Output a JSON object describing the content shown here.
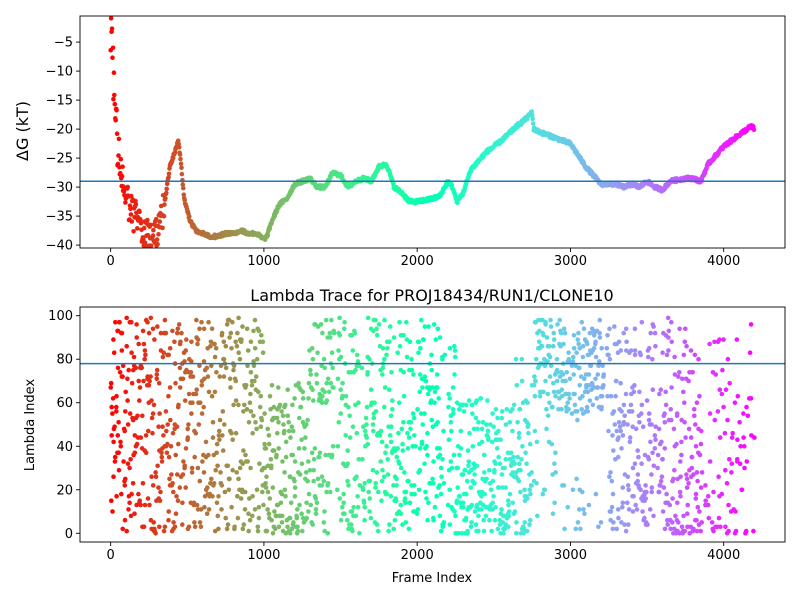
{
  "chart_data": [
    {
      "type": "scatter",
      "title": "",
      "xlabel": "",
      "ylabel": "ΔG (kT)",
      "xlim": [
        -200,
        4400
      ],
      "ylim": [
        -40.5,
        -0.5
      ],
      "xticks": [
        0,
        1000,
        2000,
        3000,
        4000
      ],
      "yticks": [
        -40,
        -35,
        -30,
        -25,
        -20,
        -15,
        -10,
        -5
      ],
      "xtick_labels": [
        "0",
        "1000",
        "2000",
        "3000",
        "4000"
      ],
      "ytick_labels": [
        "−40",
        "−35",
        "−30",
        "−25",
        "−20",
        "−15",
        "−10",
        "−5"
      ],
      "hline": -29.0,
      "hline_color": "#1f77b4",
      "colormap": "rainbow (reversed: red at frame 0 → violet at final frame)",
      "trace_knots": [
        [
          0,
          -3
        ],
        [
          20,
          -12
        ],
        [
          40,
          -20
        ],
        [
          60,
          -25
        ],
        [
          80,
          -29
        ],
        [
          100,
          -31
        ],
        [
          130,
          -34
        ],
        [
          160,
          -35
        ],
        [
          190,
          -37
        ],
        [
          230,
          -38.5
        ],
        [
          270,
          -38.5
        ],
        [
          310,
          -38.5
        ],
        [
          350,
          -33
        ],
        [
          390,
          -26
        ],
        [
          420,
          -24
        ],
        [
          440,
          -22
        ],
        [
          455,
          -25
        ],
        [
          480,
          -32
        ],
        [
          520,
          -36
        ],
        [
          560,
          -37.5
        ],
        [
          600,
          -38
        ],
        [
          650,
          -38.5
        ],
        [
          700,
          -38.5
        ],
        [
          750,
          -38
        ],
        [
          800,
          -38
        ],
        [
          850,
          -37.5
        ],
        [
          900,
          -38
        ],
        [
          950,
          -38
        ],
        [
          1000,
          -39
        ],
        [
          1020,
          -38.5
        ],
        [
          1050,
          -36
        ],
        [
          1100,
          -33
        ],
        [
          1150,
          -32
        ],
        [
          1200,
          -29.5
        ],
        [
          1250,
          -29
        ],
        [
          1300,
          -28.5
        ],
        [
          1350,
          -30
        ],
        [
          1400,
          -30
        ],
        [
          1450,
          -27.5
        ],
        [
          1500,
          -28
        ],
        [
          1550,
          -30
        ],
        [
          1600,
          -29
        ],
        [
          1650,
          -28.5
        ],
        [
          1700,
          -29
        ],
        [
          1750,
          -26.5
        ],
        [
          1800,
          -26
        ],
        [
          1850,
          -30
        ],
        [
          1900,
          -31
        ],
        [
          1950,
          -32.5
        ],
        [
          2000,
          -32.5
        ],
        [
          2100,
          -32
        ],
        [
          2150,
          -31.5
        ],
        [
          2200,
          -29
        ],
        [
          2230,
          -30
        ],
        [
          2260,
          -32.5
        ],
        [
          2300,
          -31
        ],
        [
          2350,
          -27
        ],
        [
          2450,
          -24
        ],
        [
          2550,
          -22
        ],
        [
          2650,
          -19.5
        ],
        [
          2720,
          -18
        ],
        [
          2750,
          -17
        ],
        [
          2760,
          -20
        ],
        [
          2800,
          -20.5
        ],
        [
          2900,
          -21.5
        ],
        [
          3000,
          -22.5
        ],
        [
          3050,
          -24.5
        ],
        [
          3100,
          -26.5
        ],
        [
          3150,
          -28
        ],
        [
          3200,
          -29.5
        ],
        [
          3250,
          -29.5
        ],
        [
          3300,
          -29.5
        ],
        [
          3350,
          -30
        ],
        [
          3400,
          -29.5
        ],
        [
          3450,
          -30
        ],
        [
          3500,
          -29
        ],
        [
          3550,
          -30
        ],
        [
          3600,
          -30.5
        ],
        [
          3650,
          -29
        ],
        [
          3750,
          -28.5
        ],
        [
          3800,
          -28.5
        ],
        [
          3850,
          -29
        ],
        [
          3900,
          -26
        ],
        [
          4000,
          -23
        ],
        [
          4100,
          -21
        ],
        [
          4180,
          -19.5
        ],
        [
          4200,
          -20
        ]
      ],
      "frame_count": 4200
    },
    {
      "type": "scatter",
      "title": "Lambda Trace for PROJ18434/RUN1/CLONE10",
      "xlabel": "Frame Index",
      "ylabel": "Lambda Index",
      "xlim": [
        -200,
        4400
      ],
      "ylim": [
        -4,
        104
      ],
      "xticks": [
        0,
        1000,
        2000,
        3000,
        4000
      ],
      "yticks": [
        0,
        20,
        40,
        60,
        80,
        100
      ],
      "xtick_labels": [
        "0",
        "1000",
        "2000",
        "3000",
        "4000"
      ],
      "ytick_labels": [
        "0",
        "20",
        "40",
        "60",
        "80",
        "100"
      ],
      "hline": 78,
      "hline_color": "#1f77b4",
      "colormap": "rainbow (reversed: red at frame 0 → violet at final frame)",
      "lambda_range": [
        0,
        99
      ],
      "frame_count": 4200,
      "point_stride": 2
    }
  ]
}
